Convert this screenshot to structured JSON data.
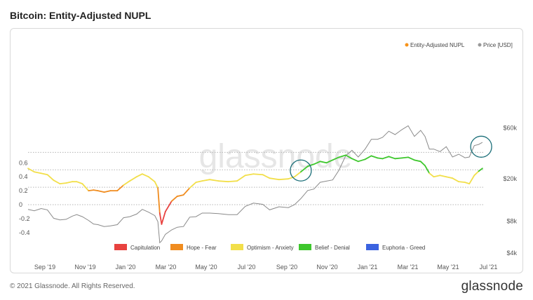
{
  "page": {
    "title": "Bitcoin: Entity-Adjusted NUPL",
    "copyright": "© 2021 Glassnode. All Rights Reserved.",
    "logo_text": "glassnode",
    "watermark_text": "glassnode"
  },
  "chart_data": {
    "type": "line",
    "title": "Bitcoin: Entity-Adjusted NUPL",
    "x_ticks": [
      "Sep '19",
      "Nov '19",
      "Jan '20",
      "Mar '20",
      "May '20",
      "Jul '20",
      "Sep '20",
      "Nov '20",
      "Jan '21",
      "Mar '21",
      "May '21",
      "Jul '21"
    ],
    "left_axis": {
      "ticks": [
        "0.6",
        "0.4",
        "0.2",
        "0",
        "-0.2",
        "-0.4"
      ],
      "values": [
        0.6,
        0.4,
        0.2,
        0,
        -0.2,
        -0.4
      ],
      "ylim": [
        -0.4,
        0.7
      ]
    },
    "right_axis": {
      "ticks": [
        "$60k",
        "$20k",
        "$8k",
        "$4k"
      ],
      "values": [
        60000,
        20000,
        8000,
        4000
      ],
      "scale": "log"
    },
    "top_legend": [
      {
        "label": "Entity-Adjusted NUPL",
        "color": "#f7931a"
      },
      {
        "label": "Price [USD]",
        "color": "#999999"
      }
    ],
    "zone_legend": [
      {
        "label": "Capitulation",
        "color": "#e8423f"
      },
      {
        "label": "Hope - Fear",
        "color": "#f08c1f"
      },
      {
        "label": "Optimism - Anxiety",
        "color": "#f2df4a"
      },
      {
        "label": "Belief - Denial",
        "color": "#3ec72d"
      },
      {
        "label": "Euphoria - Greed",
        "color": "#3b63e0"
      }
    ],
    "zone_thresholds": [
      0,
      0.25,
      0.5,
      0.75
    ],
    "reference_lines": [
      0.75,
      0.5,
      0.25,
      0
    ],
    "grid": false,
    "series": [
      {
        "name": "Entity-Adjusted NUPL",
        "points": [
          [
            "2019-08-15",
            0.52
          ],
          [
            "2019-08-25",
            0.47
          ],
          [
            "2019-09-05",
            0.45
          ],
          [
            "2019-09-15",
            0.43
          ],
          [
            "2019-09-25",
            0.35
          ],
          [
            "2019-10-05",
            0.3
          ],
          [
            "2019-10-15",
            0.31
          ],
          [
            "2019-10-25",
            0.33
          ],
          [
            "2019-11-01",
            0.33
          ],
          [
            "2019-11-10",
            0.3
          ],
          [
            "2019-11-20",
            0.2
          ],
          [
            "2019-11-28",
            0.21
          ],
          [
            "2019-12-05",
            0.2
          ],
          [
            "2019-12-15",
            0.18
          ],
          [
            "2019-12-25",
            0.2
          ],
          [
            "2020-01-05",
            0.2
          ],
          [
            "2020-01-15",
            0.28
          ],
          [
            "2020-01-25",
            0.34
          ],
          [
            "2020-02-05",
            0.4
          ],
          [
            "2020-02-14",
            0.44
          ],
          [
            "2020-02-24",
            0.4
          ],
          [
            "2020-03-05",
            0.33
          ],
          [
            "2020-03-10",
            0.24
          ],
          [
            "2020-03-13",
            -0.12
          ],
          [
            "2020-03-16",
            -0.28
          ],
          [
            "2020-03-22",
            -0.1
          ],
          [
            "2020-04-01",
            0.05
          ],
          [
            "2020-04-10",
            0.12
          ],
          [
            "2020-04-20",
            0.14
          ],
          [
            "2020-04-30",
            0.24
          ],
          [
            "2020-05-10",
            0.32
          ],
          [
            "2020-05-20",
            0.34
          ],
          [
            "2020-06-01",
            0.36
          ],
          [
            "2020-06-15",
            0.34
          ],
          [
            "2020-07-01",
            0.33
          ],
          [
            "2020-07-15",
            0.34
          ],
          [
            "2020-07-28",
            0.42
          ],
          [
            "2020-08-10",
            0.44
          ],
          [
            "2020-08-25",
            0.43
          ],
          [
            "2020-09-05",
            0.38
          ],
          [
            "2020-09-20",
            0.36
          ],
          [
            "2020-10-05",
            0.37
          ],
          [
            "2020-10-15",
            0.4
          ],
          [
            "2020-10-25",
            0.47
          ],
          [
            "2020-11-05",
            0.55
          ],
          [
            "2020-11-15",
            0.58
          ],
          [
            "2020-11-25",
            0.62
          ],
          [
            "2020-12-05",
            0.6
          ],
          [
            "2020-12-15",
            0.64
          ],
          [
            "2020-12-25",
            0.68
          ],
          [
            "2021-01-05",
            0.71
          ],
          [
            "2021-01-15",
            0.66
          ],
          [
            "2021-01-25",
            0.62
          ],
          [
            "2021-02-05",
            0.65
          ],
          [
            "2021-02-15",
            0.7
          ],
          [
            "2021-02-25",
            0.67
          ],
          [
            "2021-03-05",
            0.66
          ],
          [
            "2021-03-15",
            0.69
          ],
          [
            "2021-03-25",
            0.66
          ],
          [
            "2021-04-05",
            0.67
          ],
          [
            "2021-04-15",
            0.68
          ],
          [
            "2021-04-25",
            0.64
          ],
          [
            "2021-05-05",
            0.62
          ],
          [
            "2021-05-12",
            0.56
          ],
          [
            "2021-05-19",
            0.45
          ],
          [
            "2021-05-26",
            0.4
          ],
          [
            "2021-06-05",
            0.42
          ],
          [
            "2021-06-15",
            0.4
          ],
          [
            "2021-06-25",
            0.38
          ],
          [
            "2021-07-05",
            0.33
          ],
          [
            "2021-07-15",
            0.32
          ],
          [
            "2021-07-22",
            0.3
          ],
          [
            "2021-07-30",
            0.42
          ],
          [
            "2021-08-06",
            0.48
          ],
          [
            "2021-08-12",
            0.52
          ]
        ]
      },
      {
        "name": "Price [USD]",
        "points": [
          [
            "2019-08-15",
            10300
          ],
          [
            "2019-08-25",
            10000
          ],
          [
            "2019-09-05",
            10500
          ],
          [
            "2019-09-15",
            10200
          ],
          [
            "2019-09-25",
            8500
          ],
          [
            "2019-10-05",
            8200
          ],
          [
            "2019-10-15",
            8300
          ],
          [
            "2019-10-25",
            8900
          ],
          [
            "2019-11-01",
            9200
          ],
          [
            "2019-11-10",
            8800
          ],
          [
            "2019-11-20",
            8100
          ],
          [
            "2019-11-28",
            7500
          ],
          [
            "2019-12-05",
            7400
          ],
          [
            "2019-12-15",
            7100
          ],
          [
            "2019-12-25",
            7200
          ],
          [
            "2020-01-05",
            7400
          ],
          [
            "2020-01-15",
            8600
          ],
          [
            "2020-01-25",
            8800
          ],
          [
            "2020-02-05",
            9300
          ],
          [
            "2020-02-14",
            10300
          ],
          [
            "2020-02-24",
            9700
          ],
          [
            "2020-03-05",
            9000
          ],
          [
            "2020-03-10",
            7900
          ],
          [
            "2020-03-13",
            5000
          ],
          [
            "2020-03-16",
            5200
          ],
          [
            "2020-03-22",
            6000
          ],
          [
            "2020-04-01",
            6600
          ],
          [
            "2020-04-10",
            7000
          ],
          [
            "2020-04-20",
            7100
          ],
          [
            "2020-04-30",
            8700
          ],
          [
            "2020-05-10",
            8800
          ],
          [
            "2020-05-20",
            9500
          ],
          [
            "2020-06-01",
            9500
          ],
          [
            "2020-06-15",
            9400
          ],
          [
            "2020-07-01",
            9200
          ],
          [
            "2020-07-15",
            9200
          ],
          [
            "2020-07-28",
            11000
          ],
          [
            "2020-08-10",
            11800
          ],
          [
            "2020-08-25",
            11500
          ],
          [
            "2020-09-05",
            10200
          ],
          [
            "2020-09-20",
            10900
          ],
          [
            "2020-10-05",
            10700
          ],
          [
            "2020-10-15",
            11400
          ],
          [
            "2020-10-25",
            13000
          ],
          [
            "2020-11-05",
            15500
          ],
          [
            "2020-11-15",
            16000
          ],
          [
            "2020-11-25",
            18500
          ],
          [
            "2020-12-05",
            19000
          ],
          [
            "2020-12-15",
            19500
          ],
          [
            "2020-12-25",
            24000
          ],
          [
            "2021-01-05",
            33000
          ],
          [
            "2021-01-15",
            37000
          ],
          [
            "2021-01-25",
            32000
          ],
          [
            "2021-02-05",
            38000
          ],
          [
            "2021-02-15",
            47000
          ],
          [
            "2021-02-25",
            47000
          ],
          [
            "2021-03-05",
            49000
          ],
          [
            "2021-03-15",
            56000
          ],
          [
            "2021-03-25",
            52000
          ],
          [
            "2021-04-05",
            58000
          ],
          [
            "2021-04-15",
            63000
          ],
          [
            "2021-04-25",
            50000
          ],
          [
            "2021-05-05",
            57000
          ],
          [
            "2021-05-12",
            50000
          ],
          [
            "2021-05-19",
            38000
          ],
          [
            "2021-05-26",
            38000
          ],
          [
            "2021-06-05",
            36000
          ],
          [
            "2021-06-15",
            40000
          ],
          [
            "2021-06-25",
            32000
          ],
          [
            "2021-07-05",
            34000
          ],
          [
            "2021-07-15",
            31500
          ],
          [
            "2021-07-22",
            32000
          ],
          [
            "2021-07-30",
            41000
          ],
          [
            "2021-08-06",
            42000
          ],
          [
            "2021-08-12",
            44000
          ]
        ]
      }
    ],
    "highlight_circles": [
      {
        "axis": "nupl",
        "date": "2020-10-25",
        "value": 0.49
      },
      {
        "axis": "price",
        "date": "2021-08-10",
        "value": 40000
      }
    ],
    "x_domain": [
      "2019-08-15",
      "2021-08-20"
    ]
  }
}
